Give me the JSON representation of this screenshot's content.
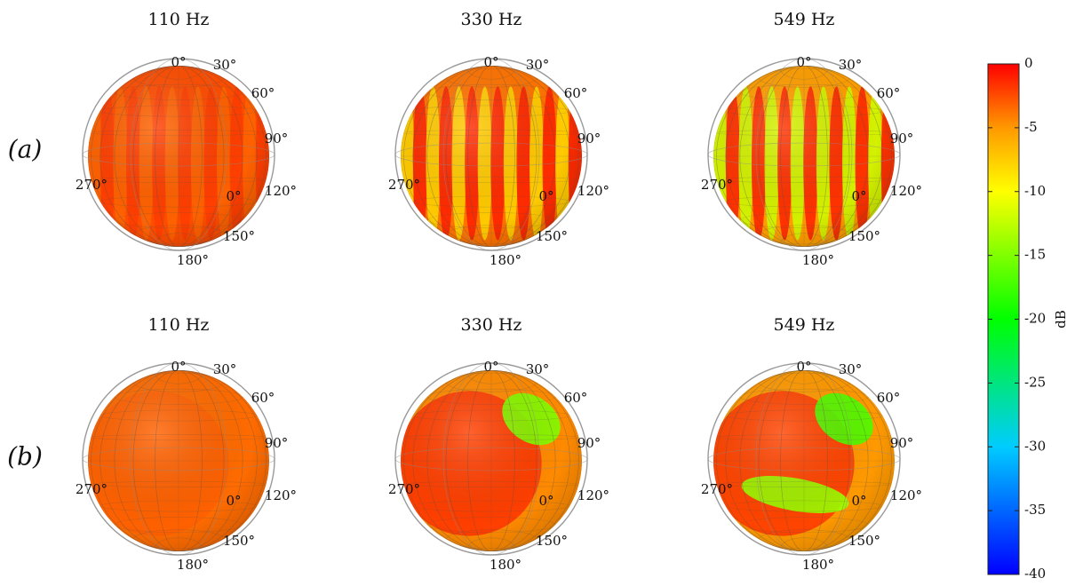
{
  "chart_data": {
    "type": "heatmap",
    "description_type": "spherical radiation directivity balloons (6 panels, 2 rows × 3 frequencies)",
    "rows": [
      {
        "label": "(a)",
        "panels": [
          {
            "title": "110 Hz",
            "frequency_hz": 110,
            "angle_labels": [
              "0°",
              "30°",
              "60°",
              "90°",
              "120°",
              "150°",
              "180°",
              "270°",
              "0°"
            ],
            "level_range_db": [
              -4,
              -2
            ]
          },
          {
            "title": "330 Hz",
            "frequency_hz": 330,
            "angle_labels": [
              "0°",
              "30°",
              "60°",
              "90°",
              "120°",
              "150°",
              "180°",
              "270°",
              "0°"
            ],
            "level_range_db": [
              -12,
              -1
            ]
          },
          {
            "title": "549 Hz",
            "frequency_hz": 549,
            "angle_labels": [
              "0°",
              "30°",
              "60°",
              "90°",
              "120°",
              "150°",
              "180°",
              "270°",
              "0°"
            ],
            "level_range_db": [
              -18,
              -1
            ]
          }
        ]
      },
      {
        "label": "(b)",
        "panels": [
          {
            "title": "110 Hz",
            "frequency_hz": 110,
            "angle_labels": [
              "0°",
              "30°",
              "60°",
              "90°",
              "120°",
              "150°",
              "180°",
              "270°",
              "0°"
            ],
            "level_range_db": [
              -5,
              -3
            ]
          },
          {
            "title": "330 Hz",
            "frequency_hz": 330,
            "angle_labels": [
              "0°",
              "30°",
              "60°",
              "90°",
              "120°",
              "150°",
              "180°",
              "270°",
              "0°"
            ],
            "level_range_db": [
              -15,
              -1
            ]
          },
          {
            "title": "549 Hz",
            "frequency_hz": 549,
            "angle_labels": [
              "0°",
              "30°",
              "60°",
              "90°",
              "120°",
              "150°",
              "180°",
              "270°",
              "0°"
            ],
            "level_range_db": [
              -17,
              -1
            ]
          }
        ]
      }
    ],
    "colorbar": {
      "label": "dB",
      "range": [
        -40,
        0
      ],
      "ticks": [
        0,
        -5,
        -10,
        -15,
        -20,
        -25,
        -30,
        -35,
        -40
      ],
      "tick_labels": [
        "0",
        "-5",
        "-10",
        "-15",
        "-20",
        "-25",
        "-30",
        "-35",
        "-40"
      ],
      "colormap": [
        "#0000ff",
        "#00ffff",
        "#00ff00",
        "#ffff00",
        "#ff8800",
        "#ff0000"
      ]
    }
  }
}
